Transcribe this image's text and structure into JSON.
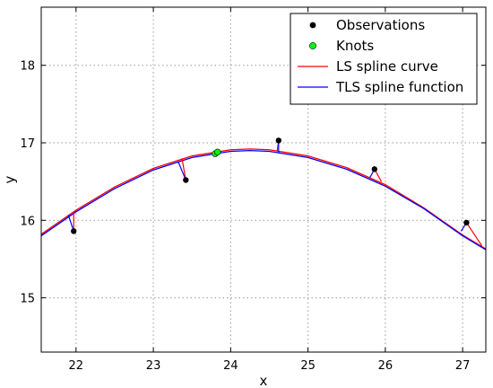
{
  "chart_data": {
    "type": "line",
    "xlabel": "x",
    "ylabel": "y",
    "xlim": [
      21.55,
      27.3
    ],
    "ylim": [
      14.3,
      18.75
    ],
    "xticks": [
      22,
      23,
      24,
      25,
      26,
      27
    ],
    "yticks": [
      15,
      16,
      17,
      18
    ],
    "grid": true,
    "legend_position": "top-right",
    "legend": [
      {
        "label": "Observations",
        "marker": "dot",
        "color": "#000000"
      },
      {
        "label": "Knots",
        "marker": "dot",
        "color": "#00ff00"
      },
      {
        "label": "LS spline curve",
        "marker": "line",
        "color": "#ff0000"
      },
      {
        "label": "TLS spline function",
        "marker": "line",
        "color": "#0000ff"
      }
    ],
    "observations": [
      {
        "x": 21.97,
        "y": 15.86
      },
      {
        "x": 23.42,
        "y": 16.52
      },
      {
        "x": 24.62,
        "y": 17.03
      },
      {
        "x": 25.86,
        "y": 16.66
      },
      {
        "x": 27.05,
        "y": 15.97
      }
    ],
    "knots": [
      {
        "x": 23.8,
        "y": 16.86
      },
      {
        "x": 23.83,
        "y": 16.88
      }
    ],
    "ls_curve": {
      "name": "LS spline curve",
      "color": "#ff0000",
      "x": [
        21.55,
        22.0,
        22.5,
        23.0,
        23.5,
        24.0,
        24.25,
        24.5,
        25.0,
        25.5,
        26.0,
        26.5,
        27.0,
        27.3
      ],
      "y": [
        15.82,
        16.13,
        16.43,
        16.67,
        16.83,
        16.91,
        16.92,
        16.91,
        16.83,
        16.68,
        16.46,
        16.16,
        15.81,
        15.63
      ]
    },
    "tls_curve": {
      "name": "TLS spline function",
      "color": "#0000ff",
      "x": [
        21.55,
        22.0,
        22.5,
        23.0,
        23.5,
        24.0,
        24.25,
        24.5,
        25.0,
        25.5,
        26.0,
        26.5,
        27.0,
        27.3
      ],
      "y": [
        15.8,
        16.11,
        16.41,
        16.65,
        16.81,
        16.89,
        16.9,
        16.89,
        16.81,
        16.66,
        16.44,
        16.15,
        15.8,
        15.62
      ]
    },
    "residuals": [
      {
        "obs": [
          21.97,
          15.86
        ],
        "ls": [
          21.97,
          16.11
        ],
        "tls": [
          21.9,
          16.07
        ]
      },
      {
        "obs": [
          23.42,
          16.52
        ],
        "ls": [
          23.37,
          16.8
        ],
        "tls": [
          23.32,
          16.76
        ]
      },
      {
        "obs": [
          24.62,
          17.03
        ],
        "ls": [
          24.6,
          16.89
        ],
        "tls": [
          24.62,
          16.87
        ]
      },
      {
        "obs": [
          25.86,
          16.66
        ],
        "ls": [
          25.95,
          16.5
        ],
        "tls": [
          25.8,
          16.55
        ]
      },
      {
        "obs": [
          27.05,
          15.97
        ],
        "ls": [
          27.25,
          15.67
        ],
        "tls": [
          26.98,
          15.86
        ]
      }
    ]
  }
}
